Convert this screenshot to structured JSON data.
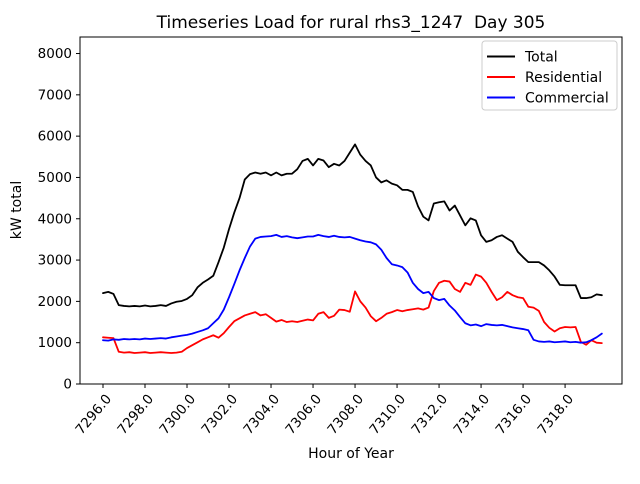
{
  "chart_data": {
    "type": "line",
    "title": "Timeseries Load for rural rhs3_1247  Day 305",
    "xlabel": "Hour of Year",
    "ylabel": "kW total",
    "xlim": [
      7294.905,
      7320.71
    ],
    "ylim": [
      0,
      8400
    ],
    "grid": false,
    "legend_position": "upper right",
    "x_ticks": {
      "values": [
        7296,
        7298,
        7300,
        7302,
        7304,
        7306,
        7308,
        7310,
        7312,
        7314,
        7316,
        7318
      ],
      "labels": [
        "7296.0",
        "7298.0",
        "7300.0",
        "7302.0",
        "7304.0",
        "7306.0",
        "7308.0",
        "7310.0",
        "7312.0",
        "7314.0",
        "7316.0",
        "7318.0"
      ]
    },
    "y_ticks": {
      "values": [
        0,
        1000,
        2000,
        3000,
        4000,
        5000,
        6000,
        7000,
        8000
      ],
      "labels": [
        "0",
        "1000",
        "2000",
        "3000",
        "4000",
        "5000",
        "6000",
        "7000",
        "8000"
      ]
    },
    "x_start": 7296.0,
    "x_step": 0.25,
    "series": [
      {
        "name": "Total",
        "color": "#000000",
        "values": [
          2200,
          2230,
          2180,
          1910,
          1890,
          1880,
          1890,
          1880,
          1900,
          1880,
          1890,
          1910,
          1890,
          1950,
          1990,
          2010,
          2060,
          2150,
          2340,
          2450,
          2530,
          2620,
          2950,
          3300,
          3750,
          4150,
          4500,
          4950,
          5080,
          5120,
          5090,
          5120,
          5050,
          5120,
          5050,
          5090,
          5090,
          5200,
          5400,
          5450,
          5290,
          5450,
          5410,
          5250,
          5330,
          5290,
          5400,
          5600,
          5800,
          5550,
          5400,
          5290,
          5000,
          4880,
          4930,
          4850,
          4810,
          4700,
          4700,
          4650,
          4300,
          4050,
          3960,
          4370,
          4400,
          4420,
          4200,
          4320,
          4080,
          3840,
          4010,
          3960,
          3600,
          3440,
          3480,
          3560,
          3600,
          3520,
          3440,
          3200,
          3070,
          2950,
          2950,
          2950,
          2870,
          2750,
          2600,
          2400,
          2390,
          2390,
          2390,
          2080,
          2080,
          2100,
          2170,
          2150
        ]
      },
      {
        "name": "Residential",
        "color": "#ff0000",
        "values": [
          1130,
          1120,
          1110,
          780,
          760,
          770,
          750,
          760,
          770,
          750,
          760,
          770,
          760,
          750,
          760,
          780,
          870,
          940,
          1010,
          1080,
          1130,
          1180,
          1120,
          1230,
          1380,
          1520,
          1590,
          1660,
          1700,
          1740,
          1660,
          1690,
          1600,
          1510,
          1550,
          1500,
          1520,
          1500,
          1530,
          1560,
          1540,
          1700,
          1740,
          1600,
          1650,
          1800,
          1790,
          1750,
          2240,
          2000,
          1850,
          1640,
          1520,
          1600,
          1700,
          1740,
          1790,
          1760,
          1790,
          1810,
          1830,
          1800,
          1850,
          2250,
          2450,
          2500,
          2480,
          2300,
          2230,
          2450,
          2400,
          2650,
          2600,
          2450,
          2230,
          2030,
          2100,
          2230,
          2150,
          2100,
          2080,
          1870,
          1850,
          1770,
          1500,
          1360,
          1270,
          1350,
          1380,
          1370,
          1380,
          1020,
          950,
          1060,
          1000,
          990
        ]
      },
      {
        "name": "Commercial",
        "color": "#0000ff",
        "values": [
          1060,
          1050,
          1080,
          1070,
          1090,
          1080,
          1090,
          1080,
          1100,
          1090,
          1100,
          1110,
          1100,
          1130,
          1150,
          1170,
          1190,
          1220,
          1260,
          1300,
          1350,
          1470,
          1590,
          1800,
          2100,
          2420,
          2750,
          3050,
          3330,
          3520,
          3560,
          3570,
          3580,
          3610,
          3560,
          3580,
          3550,
          3530,
          3550,
          3570,
          3570,
          3610,
          3580,
          3560,
          3590,
          3560,
          3550,
          3560,
          3520,
          3480,
          3450,
          3430,
          3380,
          3250,
          3050,
          2900,
          2870,
          2830,
          2700,
          2450,
          2300,
          2200,
          2230,
          2080,
          2030,
          2060,
          1900,
          1780,
          1620,
          1470,
          1420,
          1440,
          1400,
          1450,
          1430,
          1420,
          1430,
          1400,
          1370,
          1350,
          1330,
          1300,
          1070,
          1030,
          1020,
          1030,
          1010,
          1020,
          1030,
          1010,
          1020,
          1000,
          1010,
          1060,
          1130,
          1220
        ]
      }
    ],
    "frame_color": "#000000",
    "legend_border_color": "#cccccc"
  }
}
